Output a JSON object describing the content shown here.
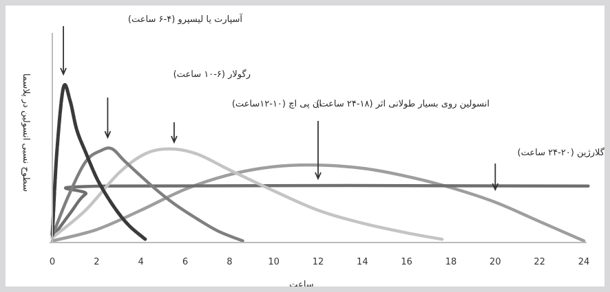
{
  "chart_data": {
    "type": "line",
    "xlabel": "ساعت",
    "ylabel": "سطوح نسبی انسولین در پلاسما",
    "xlim": [
      0,
      24
    ],
    "ylim": [
      0,
      1
    ],
    "x_ticks": [
      0,
      2,
      4,
      6,
      8,
      10,
      12,
      14,
      16,
      18,
      20,
      22,
      24
    ],
    "grid": false,
    "legend": "none",
    "series": [
      {
        "name": "آسپارت یا لیسپرو (۴-۶ ساعت)",
        "color": "#3a3a3a",
        "points": [
          [
            0,
            0.05
          ],
          [
            0.2,
            0.55
          ],
          [
            0.5,
            0.96
          ],
          [
            0.8,
            0.88
          ],
          [
            1.1,
            0.7
          ],
          [
            1.5,
            0.56
          ],
          [
            2,
            0.4
          ],
          [
            2.5,
            0.28
          ],
          [
            3,
            0.18
          ],
          [
            3.5,
            0.1
          ],
          [
            4.2,
            0.02
          ]
        ],
        "peak_x": 0.5
      },
      {
        "name": "رگولار (۶-۱۰ ساعت)",
        "color": "#7f7f7f",
        "points": [
          [
            0,
            0.04
          ],
          [
            0.7,
            0.28
          ],
          [
            1.5,
            0.5
          ],
          [
            2.2,
            0.57
          ],
          [
            2.7,
            0.58
          ],
          [
            3.3,
            0.5
          ],
          [
            4.5,
            0.35
          ],
          [
            5.5,
            0.24
          ],
          [
            6.5,
            0.15
          ],
          [
            7.5,
            0.07
          ],
          [
            8.6,
            0.01
          ]
        ],
        "peak_x": 2.5
      },
      {
        "name": "ان پی اچ (۱۰-۱۲ساعت)",
        "color": "#c4c4c4",
        "points": [
          [
            0,
            0.03
          ],
          [
            1.5,
            0.2
          ],
          [
            3,
            0.43
          ],
          [
            4.2,
            0.55
          ],
          [
            5.3,
            0.58
          ],
          [
            6.5,
            0.55
          ],
          [
            8,
            0.45
          ],
          [
            10,
            0.32
          ],
          [
            12,
            0.2
          ],
          [
            14,
            0.12
          ],
          [
            16,
            0.06
          ],
          [
            17.6,
            0.02
          ]
        ],
        "peak_x": 5.5
      },
      {
        "name": "انسولین روی بسیار طولانی اثر (۱۸-۲۴ ساعت)",
        "color": "#9e9e9e",
        "points": [
          [
            0,
            0.01
          ],
          [
            2,
            0.08
          ],
          [
            4,
            0.2
          ],
          [
            6,
            0.33
          ],
          [
            8,
            0.42
          ],
          [
            10,
            0.47
          ],
          [
            12,
            0.48
          ],
          [
            14,
            0.46
          ],
          [
            16,
            0.41
          ],
          [
            18,
            0.34
          ],
          [
            20,
            0.25
          ],
          [
            22,
            0.13
          ],
          [
            24,
            0.01
          ]
        ],
        "peak_x": 12
      },
      {
        "name": "گلارژین (۲۰-۲۴ ساعت)",
        "color": "#6f6f6f",
        "points": [
          [
            0,
            0.03
          ],
          [
            0.8,
            0.18
          ],
          [
            1.5,
            0.3
          ],
          [
            2.5,
            0.35
          ],
          [
            24.2,
            0.35
          ]
        ],
        "peak_x": 20
      }
    ]
  }
}
